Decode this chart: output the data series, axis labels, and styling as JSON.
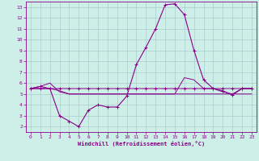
{
  "title": "",
  "xlabel": "Windchill (Refroidissement éolien,°C)",
  "ylabel": "",
  "background_color": "#ceeee8",
  "grid_color": "#aacccc",
  "line_color": "#880088",
  "xlim": [
    -0.5,
    23.5
  ],
  "ylim": [
    1.5,
    13.5
  ],
  "xticks": [
    0,
    1,
    2,
    3,
    4,
    5,
    6,
    7,
    8,
    9,
    10,
    11,
    12,
    13,
    14,
    15,
    16,
    17,
    18,
    19,
    20,
    21,
    22,
    23
  ],
  "yticks": [
    2,
    3,
    4,
    5,
    6,
    7,
    8,
    9,
    10,
    11,
    12,
    13
  ],
  "hours": [
    0,
    1,
    2,
    3,
    4,
    5,
    6,
    7,
    8,
    9,
    10,
    11,
    12,
    13,
    14,
    15,
    16,
    17,
    18,
    19,
    20,
    21,
    22,
    23
  ],
  "windchill": [
    5.5,
    5.5,
    5.5,
    3.0,
    2.5,
    2.0,
    3.5,
    4.0,
    3.8,
    3.8,
    4.8,
    7.7,
    9.3,
    11.0,
    13.2,
    13.3,
    12.3,
    9.0,
    6.3,
    5.5,
    5.3,
    4.9,
    5.5,
    5.5
  ],
  "temp": [
    5.5,
    5.7,
    5.5,
    5.5,
    5.5,
    5.5,
    5.5,
    5.5,
    5.5,
    5.5,
    5.5,
    5.5,
    5.5,
    5.5,
    5.5,
    5.5,
    5.5,
    5.5,
    5.5,
    5.5,
    5.5,
    5.5,
    5.5,
    5.5
  ],
  "line2": [
    5.5,
    5.5,
    5.5,
    5.3,
    5.0,
    5.0,
    5.0,
    5.0,
    5.0,
    5.0,
    5.0,
    5.0,
    5.0,
    5.0,
    5.0,
    5.0,
    5.0,
    5.0,
    5.0,
    5.0,
    5.0,
    5.0,
    5.0,
    5.0
  ],
  "line3": [
    5.5,
    5.7,
    6.0,
    5.2,
    5.0,
    5.0,
    5.0,
    5.0,
    5.0,
    5.0,
    5.0,
    5.0,
    5.0,
    5.0,
    5.0,
    5.0,
    6.5,
    6.3,
    5.5,
    5.5,
    5.2,
    5.0,
    5.5,
    5.5
  ]
}
